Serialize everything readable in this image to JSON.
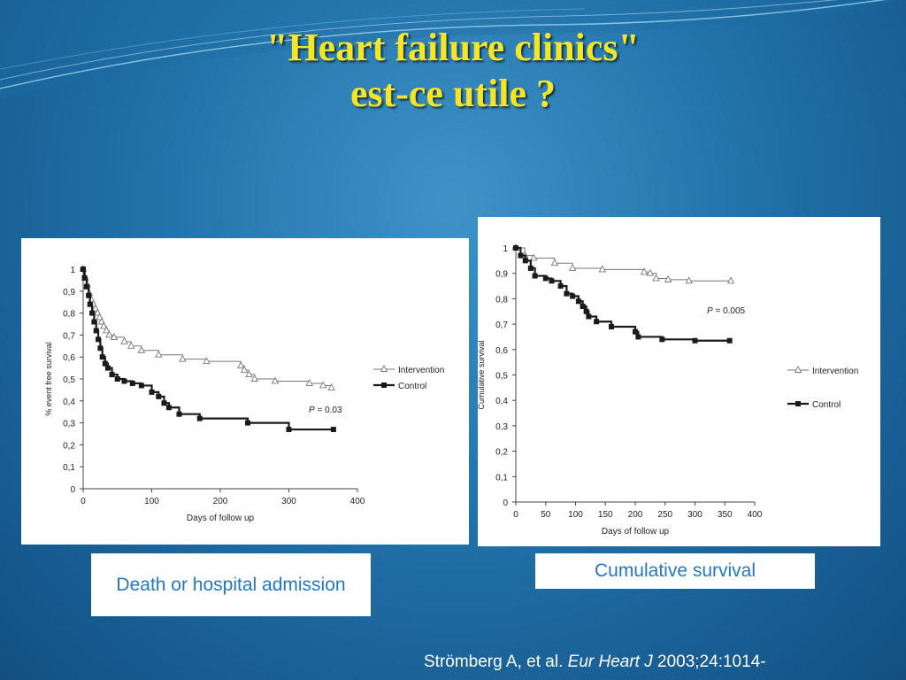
{
  "slide": {
    "title_line1": "\"Heart failure clinics\"",
    "title_line2": "est-ce utile ?",
    "caption_left": "Death or hospital admission",
    "caption_right": "Cumulative survival",
    "citation_authors": "Strömberg A, et al.",
    "citation_journal": "Eur Heart J",
    "citation_details": "2003;24:1014-"
  },
  "colors": {
    "title": "#f2e52a",
    "caption_text": "#2277c2",
    "background": "#2273aa",
    "series_intervention": "#777777",
    "series_control": "#1a1a1a"
  },
  "chart_data": [
    {
      "type": "line",
      "ylabel": "% event free survival",
      "xlabel": "Days of follow up",
      "xlim": [
        0,
        400
      ],
      "ylim": [
        0,
        1
      ],
      "x_ticks": [
        0,
        100,
        200,
        300,
        400
      ],
      "x_tick_labels": [
        "0",
        "100",
        "200",
        "300",
        "400"
      ],
      "y_ticks": [
        0,
        0.1,
        0.2,
        0.3,
        0.4,
        0.5,
        0.6,
        0.7,
        0.8,
        0.9,
        1
      ],
      "y_tick_labels": [
        "0",
        "0,1",
        "0,2",
        "0,3",
        "0,4",
        "0,5",
        "0,6",
        "0,7",
        "0,8",
        "0,9",
        "1"
      ],
      "annotation": "P = 0.03",
      "legend_position": "right",
      "series": [
        {
          "name": "Intervention",
          "marker": "triangle",
          "points": [
            [
              0,
              1.0
            ],
            [
              3,
              0.96
            ],
            [
              6,
              0.93
            ],
            [
              9,
              0.89
            ],
            [
              12,
              0.86
            ],
            [
              15,
              0.84
            ],
            [
              18,
              0.82
            ],
            [
              21,
              0.8
            ],
            [
              24,
              0.78
            ],
            [
              27,
              0.76
            ],
            [
              30,
              0.74
            ],
            [
              34,
              0.72
            ],
            [
              38,
              0.7
            ],
            [
              45,
              0.69
            ],
            [
              60,
              0.67
            ],
            [
              70,
              0.65
            ],
            [
              85,
              0.63
            ],
            [
              110,
              0.61
            ],
            [
              145,
              0.59
            ],
            [
              180,
              0.58
            ],
            [
              230,
              0.56
            ],
            [
              235,
              0.54
            ],
            [
              242,
              0.52
            ],
            [
              250,
              0.5
            ],
            [
              280,
              0.49
            ],
            [
              330,
              0.48
            ],
            [
              350,
              0.47
            ],
            [
              362,
              0.46
            ]
          ]
        },
        {
          "name": "Control",
          "marker": "square",
          "points": [
            [
              0,
              1.0
            ],
            [
              2,
              0.96
            ],
            [
              5,
              0.92
            ],
            [
              8,
              0.88
            ],
            [
              10,
              0.84
            ],
            [
              13,
              0.8
            ],
            [
              16,
              0.76
            ],
            [
              19,
              0.72
            ],
            [
              22,
              0.68
            ],
            [
              25,
              0.64
            ],
            [
              28,
              0.6
            ],
            [
              32,
              0.57
            ],
            [
              36,
              0.55
            ],
            [
              42,
              0.52
            ],
            [
              50,
              0.5
            ],
            [
              60,
              0.49
            ],
            [
              72,
              0.48
            ],
            [
              85,
              0.47
            ],
            [
              100,
              0.44
            ],
            [
              110,
              0.42
            ],
            [
              118,
              0.39
            ],
            [
              125,
              0.37
            ],
            [
              140,
              0.34
            ],
            [
              170,
              0.32
            ],
            [
              240,
              0.3
            ],
            [
              300,
              0.27
            ],
            [
              365,
              0.27
            ]
          ]
        }
      ]
    },
    {
      "type": "line",
      "ylabel": "Cumulative survival",
      "xlabel": "Days of follow up",
      "xlim": [
        0,
        400
      ],
      "ylim": [
        0,
        1
      ],
      "x_ticks": [
        0,
        50,
        100,
        150,
        200,
        250,
        300,
        350,
        400
      ],
      "x_tick_labels": [
        "0",
        "50",
        "100",
        "150",
        "200",
        "250",
        "300",
        "350",
        "400"
      ],
      "y_ticks": [
        0,
        0.1,
        0.2,
        0.3,
        0.4,
        0.5,
        0.6,
        0.7,
        0.8,
        0.9,
        1
      ],
      "y_tick_labels": [
        "0",
        "0,1",
        "0,2",
        "0,3",
        "0,4",
        "0,5",
        "0,6",
        "0,7",
        "0,8",
        "0,9",
        "1"
      ],
      "annotation": "P = 0.005",
      "legend_position": "right",
      "series": [
        {
          "name": "Intervention",
          "marker": "triangle",
          "points": [
            [
              0,
              1.0
            ],
            [
              15,
              0.97
            ],
            [
              30,
              0.96
            ],
            [
              65,
              0.94
            ],
            [
              95,
              0.92
            ],
            [
              145,
              0.915
            ],
            [
              215,
              0.905
            ],
            [
              225,
              0.9
            ],
            [
              235,
              0.88
            ],
            [
              255,
              0.875
            ],
            [
              290,
              0.87
            ],
            [
              360,
              0.87
            ]
          ]
        },
        {
          "name": "Control",
          "marker": "square",
          "points": [
            [
              0,
              1.0
            ],
            [
              8,
              0.97
            ],
            [
              16,
              0.95
            ],
            [
              25,
              0.92
            ],
            [
              32,
              0.89
            ],
            [
              50,
              0.88
            ],
            [
              60,
              0.87
            ],
            [
              75,
              0.85
            ],
            [
              85,
              0.82
            ],
            [
              95,
              0.81
            ],
            [
              105,
              0.79
            ],
            [
              112,
              0.77
            ],
            [
              118,
              0.75
            ],
            [
              122,
              0.73
            ],
            [
              135,
              0.71
            ],
            [
              160,
              0.69
            ],
            [
              200,
              0.67
            ],
            [
              205,
              0.65
            ],
            [
              245,
              0.64
            ],
            [
              300,
              0.635
            ],
            [
              358,
              0.635
            ]
          ]
        }
      ]
    }
  ]
}
